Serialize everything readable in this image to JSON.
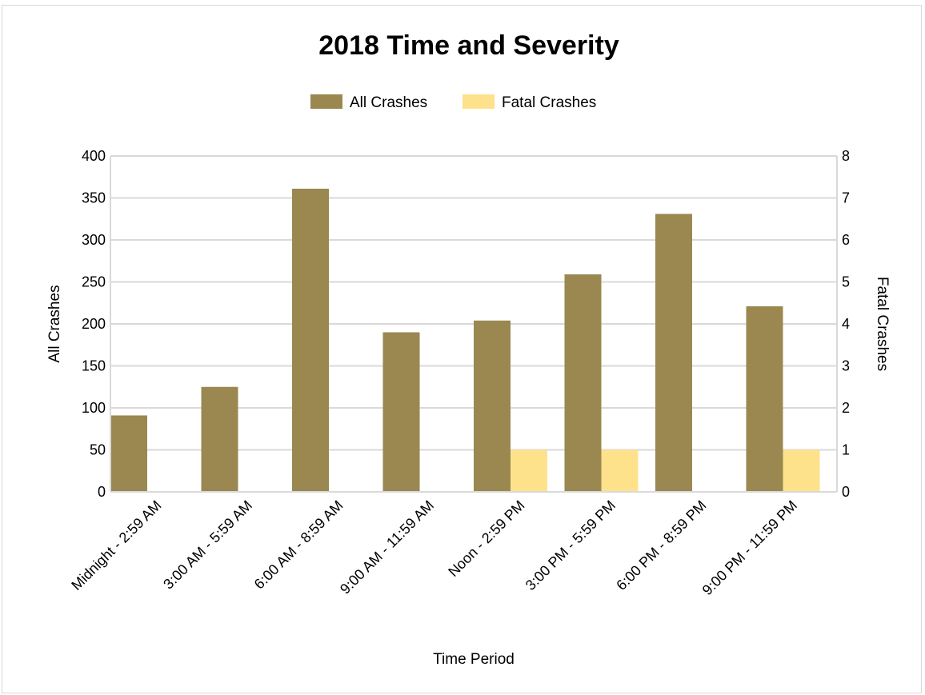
{
  "chart_data": {
    "type": "bar",
    "title": "2018 Time and Severity",
    "xlabel": "Time Period",
    "ylabel_left": "All Crashes",
    "ylabel_right": "Fatal Crashes",
    "categories": [
      "Midnight - 2:59 AM",
      "3:00 AM - 5:59 AM",
      "6:00 AM - 8:59 AM",
      "9:00 AM - 11:59 AM",
      "Noon - 2:59 PM",
      "3:00 PM - 5:59 PM",
      "6:00 PM - 8:59 PM",
      "9:00 PM - 11:59 PM"
    ],
    "series": [
      {
        "name": "All Crashes",
        "axis": "left",
        "color": "#9a8850",
        "values": [
          91,
          125,
          361,
          190,
          204,
          259,
          331,
          221
        ]
      },
      {
        "name": "Fatal Crashes",
        "axis": "right",
        "color": "#fde28b",
        "values": [
          0,
          0,
          0,
          0,
          1,
          1,
          0,
          1
        ]
      }
    ],
    "ylim_left": [
      0,
      400
    ],
    "ylim_right": [
      0,
      8
    ],
    "yticks_left": [
      "0",
      "50",
      "100",
      "150",
      "200",
      "250",
      "300",
      "350",
      "400"
    ],
    "yticks_right": [
      "0",
      "1",
      "2",
      "3",
      "4",
      "5",
      "6",
      "7",
      "8"
    ],
    "grid": true,
    "legend_position": "top-center"
  }
}
